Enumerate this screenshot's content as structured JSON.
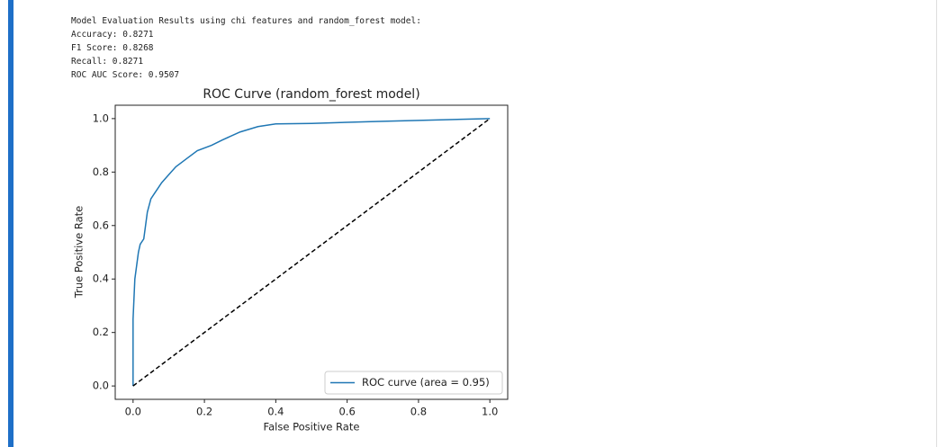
{
  "output_lines": [
    "Model Evaluation Results using chi features and random_forest model:",
    "Accuracy: 0.8271",
    "F1 Score: 0.8268",
    "Recall: 0.8271",
    "ROC AUC Score: 0.9507"
  ],
  "chart_data": {
    "type": "line",
    "title": "ROC Curve (random_forest model)",
    "x_label": "False Positive Rate",
    "y_label": "True Positive Rate",
    "xlim": [
      -0.05,
      1.05
    ],
    "ylim": [
      -0.05,
      1.05
    ],
    "xticks": [
      {
        "value": 0,
        "label": "0.0"
      },
      {
        "value": 0.2,
        "label": "0.2"
      },
      {
        "value": 0.4,
        "label": "0.4"
      },
      {
        "value": 0.6,
        "label": "0.6"
      },
      {
        "value": 0.8,
        "label": "0.8"
      },
      {
        "value": 1,
        "label": "1.0"
      }
    ],
    "yticks": [
      {
        "value": 0,
        "label": "0.0"
      },
      {
        "value": 0.2,
        "label": "0.2"
      },
      {
        "value": 0.4,
        "label": "0.4"
      },
      {
        "value": 0.6,
        "label": "0.6"
      },
      {
        "value": 0.8,
        "label": "0.8"
      },
      {
        "value": 1,
        "label": "1.0"
      }
    ],
    "legend": "lower right",
    "series": [
      {
        "name": "ROC curve (area = 0.95)",
        "color": "#1f77b4",
        "style": "solid",
        "x": [
          0,
          0,
          0.005,
          0.01,
          0.015,
          0.02,
          0.03,
          0.035,
          0.04,
          0.05,
          0.06,
          0.07,
          0.08,
          0.1,
          0.12,
          0.15,
          0.18,
          0.22,
          0.25,
          0.3,
          0.35,
          0.4,
          0.5,
          0.7,
          0.85,
          1
        ],
        "values": [
          0,
          0.25,
          0.4,
          0.45,
          0.5,
          0.53,
          0.55,
          0.6,
          0.65,
          0.7,
          0.72,
          0.74,
          0.76,
          0.79,
          0.82,
          0.85,
          0.88,
          0.9,
          0.92,
          0.95,
          0.97,
          0.98,
          0.982,
          0.99,
          0.995,
          1
        ]
      },
      {
        "color": "#000000",
        "style": "dashed",
        "x": [
          0,
          1
        ],
        "values": [
          0,
          1
        ]
      }
    ]
  }
}
